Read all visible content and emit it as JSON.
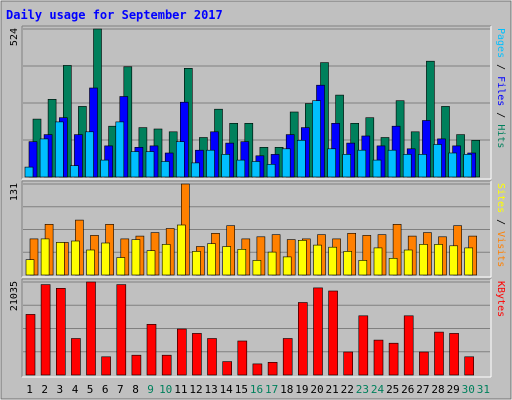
{
  "chart_data": {
    "type": "bar",
    "title": "Daily usage for September 2017",
    "categories": [
      "1",
      "2",
      "3",
      "4",
      "5",
      "6",
      "7",
      "8",
      "9",
      "10",
      "11",
      "12",
      "13",
      "14",
      "15",
      "16",
      "17",
      "18",
      "19",
      "20",
      "21",
      "22",
      "23",
      "24",
      "25",
      "26",
      "27",
      "28",
      "29",
      "30",
      "31"
    ],
    "weekend_days": [
      "9",
      "10",
      "16",
      "17",
      "23",
      "24",
      "30",
      "31"
    ],
    "panels": [
      {
        "id": "hits",
        "max_label": "524",
        "ylim": [
          0,
          524
        ],
        "side_label": [
          "Pages",
          "Files",
          "Hits"
        ],
        "series": [
          {
            "name": "Hits",
            "color": "#00805c",
            "values": [
              205,
              275,
              395,
              250,
              524,
              180,
              390,
              175,
              170,
              160,
              385,
              140,
              240,
              190,
              190,
              105,
              105,
              230,
              260,
              405,
              290,
              190,
              210,
              140,
              270,
              160,
              410,
              250,
              150,
              130,
              null
            ]
          },
          {
            "name": "Files",
            "color": "#0000ff",
            "values": [
              125,
              150,
              210,
              150,
              315,
              110,
              285,
              105,
              110,
              85,
              265,
              95,
              160,
              120,
              125,
              75,
              80,
              150,
              175,
              325,
              190,
              120,
              145,
              110,
              180,
              100,
              200,
              135,
              110,
              85,
              null
            ]
          },
          {
            "name": "Pages",
            "color": "#00bfff",
            "values": [
              35,
              135,
              195,
              40,
              160,
              60,
              195,
              90,
              90,
              55,
              125,
              50,
              95,
              80,
              60,
              55,
              45,
              100,
              130,
              270,
              100,
              80,
              95,
              60,
              95,
              80,
              80,
              115,
              85,
              80,
              null
            ]
          }
        ]
      },
      {
        "id": "visits",
        "max_label": "131",
        "ylim": [
          0,
          131
        ],
        "side_label": [
          "Sites",
          "Visits"
        ],
        "series": [
          {
            "name": "Visits",
            "color": "#ff8000",
            "values": [
              52,
              73,
              47,
              79,
              57,
              73,
              52,
              56,
              61,
              67,
              131,
              41,
              60,
              71,
              52,
              55,
              58,
              51,
              52,
              58,
              52,
              60,
              57,
              58,
              73,
              56,
              61,
              55,
              71,
              56,
              null
            ]
          },
          {
            "name": "Sites",
            "color": "#ffff00",
            "values": [
              22,
              52,
              47,
              49,
              36,
              46,
              25,
              51,
              35,
              44,
              72,
              34,
              45,
              41,
              37,
              21,
              33,
              26,
              50,
              43,
              40,
              34,
              21,
              39,
              24,
              36,
              44,
              44,
              42,
              39,
              null
            ]
          }
        ]
      },
      {
        "id": "kbytes",
        "max_label": "21035",
        "ylim": [
          0,
          21035
        ],
        "side_label": [
          "KBytes"
        ],
        "series": [
          {
            "name": "KBytes",
            "color": "#ff0000",
            "values": [
              13700,
              20440,
              19600,
              8250,
              21035,
              4120,
              20440,
              4480,
              11470,
              4480,
              10400,
              9400,
              8250,
              3040,
              7700,
              2520,
              2870,
              8250,
              16400,
              19700,
              19000,
              5200,
              13400,
              7900,
              7200,
              13400,
              5200,
              9700,
              9400,
              4120,
              null
            ]
          }
        ]
      }
    ]
  }
}
